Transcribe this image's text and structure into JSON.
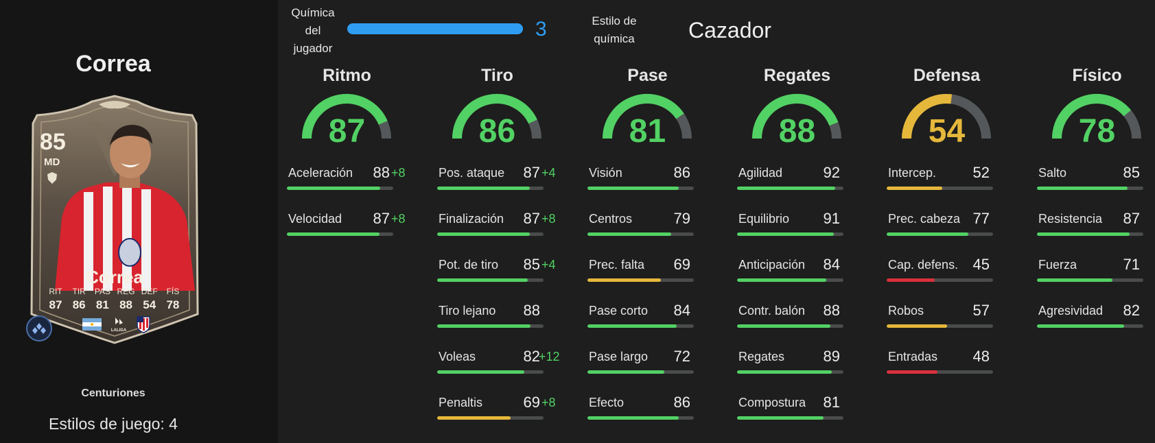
{
  "player": {
    "name": "Correa",
    "card": {
      "rating": "85",
      "position": "MD",
      "name": "Correa",
      "stats": [
        {
          "label": "RIT",
          "value": "87"
        },
        {
          "label": "TIR",
          "value": "86"
        },
        {
          "label": "PAS",
          "value": "81"
        },
        {
          "label": "REG",
          "value": "88"
        },
        {
          "label": "DEF",
          "value": "54"
        },
        {
          "label": "FÍS",
          "value": "78"
        }
      ],
      "league_logo_text": "LALIGA"
    },
    "program": "Centuriones",
    "playstyles": "Estilos de juego: 4"
  },
  "chemistry": {
    "label": "Química del jugador",
    "value": "3",
    "level": 1.0,
    "style_label": "Estilo de química",
    "style_value": "Cazador",
    "color": "#2f9df2"
  },
  "colors": {
    "high": "#52d164",
    "mid": "#e5b73b",
    "low": "#d9303c",
    "track": "#4a4c4c",
    "boost": "#52d164"
  },
  "groups": [
    {
      "title": "Ritmo",
      "value": 87,
      "tier": "high",
      "attributes": [
        {
          "name": "Aceleración",
          "value": 88,
          "boost": "+8",
          "tier": "high"
        },
        {
          "name": "Velocidad",
          "value": 87,
          "boost": "+8",
          "tier": "high"
        }
      ]
    },
    {
      "title": "Tiro",
      "value": 86,
      "tier": "high",
      "attributes": [
        {
          "name": "Pos. ataque",
          "value": 87,
          "boost": "+4",
          "tier": "high"
        },
        {
          "name": "Finalización",
          "value": 87,
          "boost": "+8",
          "tier": "high"
        },
        {
          "name": "Pot. de tiro",
          "value": 85,
          "boost": "+4",
          "tier": "high"
        },
        {
          "name": "Tiro lejano",
          "value": 88,
          "boost": "",
          "tier": "high"
        },
        {
          "name": "Voleas",
          "value": 82,
          "boost": "+12",
          "tier": "high"
        },
        {
          "name": "Penaltis",
          "value": 69,
          "boost": "+8",
          "tier": "mid"
        }
      ]
    },
    {
      "title": "Pase",
      "value": 81,
      "tier": "high",
      "attributes": [
        {
          "name": "Visión",
          "value": 86,
          "boost": "",
          "tier": "high"
        },
        {
          "name": "Centros",
          "value": 79,
          "boost": "",
          "tier": "high"
        },
        {
          "name": "Prec. falta",
          "value": 69,
          "boost": "",
          "tier": "mid"
        },
        {
          "name": "Pase corto",
          "value": 84,
          "boost": "",
          "tier": "high"
        },
        {
          "name": "Pase largo",
          "value": 72,
          "boost": "",
          "tier": "high"
        },
        {
          "name": "Efecto",
          "value": 86,
          "boost": "",
          "tier": "high"
        }
      ]
    },
    {
      "title": "Regates",
      "value": 88,
      "tier": "high",
      "attributes": [
        {
          "name": "Agilidad",
          "value": 92,
          "boost": "",
          "tier": "high"
        },
        {
          "name": "Equilibrio",
          "value": 91,
          "boost": "",
          "tier": "high"
        },
        {
          "name": "Anticipación",
          "value": 84,
          "boost": "",
          "tier": "high"
        },
        {
          "name": "Contr. balón",
          "value": 88,
          "boost": "",
          "tier": "high"
        },
        {
          "name": "Regates",
          "value": 89,
          "boost": "",
          "tier": "high"
        },
        {
          "name": "Compostura",
          "value": 81,
          "boost": "",
          "tier": "high"
        }
      ]
    },
    {
      "title": "Defensa",
      "value": 54,
      "tier": "mid",
      "attributes": [
        {
          "name": "Intercep.",
          "value": 52,
          "boost": "",
          "tier": "mid"
        },
        {
          "name": "Prec. cabeza",
          "value": 77,
          "boost": "",
          "tier": "high"
        },
        {
          "name": "Cap. defens.",
          "value": 45,
          "boost": "",
          "tier": "low"
        },
        {
          "name": "Robos",
          "value": 57,
          "boost": "",
          "tier": "mid"
        },
        {
          "name": "Entradas",
          "value": 48,
          "boost": "",
          "tier": "low"
        }
      ]
    },
    {
      "title": "Físico",
      "value": 78,
      "tier": "high",
      "attributes": [
        {
          "name": "Salto",
          "value": 85,
          "boost": "",
          "tier": "high"
        },
        {
          "name": "Resistencia",
          "value": 87,
          "boost": "",
          "tier": "high"
        },
        {
          "name": "Fuerza",
          "value": 71,
          "boost": "",
          "tier": "high"
        },
        {
          "name": "Agresividad",
          "value": 82,
          "boost": "",
          "tier": "high"
        }
      ]
    }
  ]
}
